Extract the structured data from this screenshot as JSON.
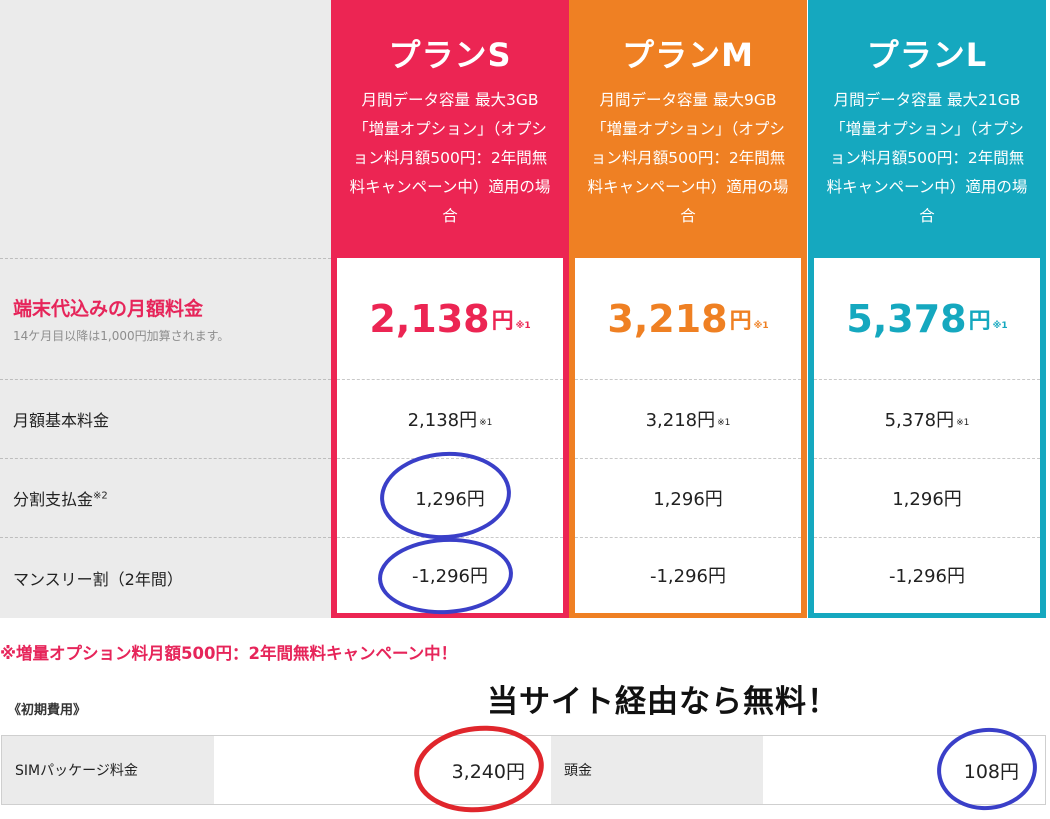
{
  "rows": {
    "featured": {
      "title": "端末代込みの月額料金",
      "sub": "14ケ月目以降は1,000円加算されます。"
    },
    "basic": "月額基本料金",
    "installment": {
      "label": "分割支払金",
      "note": "※2"
    },
    "monthly_discount": "マンスリー割（2年間）"
  },
  "plans": [
    {
      "name": "プランS",
      "color": "#ec2553",
      "desc_lines": [
        "月間データ容量 最大3GB",
        "「増量オプション」（オプシ",
        "ョン料月額500円：2年間無",
        "料キャンペーン中）適用の場",
        "合"
      ],
      "price": "2,138",
      "yen": "円",
      "note": "※1",
      "basic": "2,138円",
      "basic_note": "※1",
      "installment": "1,296円",
      "discount": "-1,296円"
    },
    {
      "name": "プランM",
      "color": "#ef8023",
      "desc_lines": [
        "月間データ容量 最大9GB",
        "「増量オプション」（オプシ",
        "ョン料月額500円：2年間無",
        "料キャンペーン中）適用の場",
        "合"
      ],
      "price": "3,218",
      "yen": "円",
      "note": "※1",
      "basic": "3,218円",
      "basic_note": "※1",
      "installment": "1,296円",
      "discount": "-1,296円"
    },
    {
      "name": "プランL",
      "color": "#15a8bf",
      "desc_lines": [
        "月間データ容量 最大21GB",
        "「増量オプション」（オプシ",
        "ョン料月額500円：2年間無",
        "料キャンペーン中）適用の場",
        "合"
      ],
      "price": "5,378",
      "yen": "円",
      "note": "※1",
      "basic": "5,378円",
      "basic_note": "※1",
      "installment": "1,296円",
      "discount": "-1,296円"
    }
  ],
  "campaign_note": "※増量オプション料月額500円：2年間無料キャンペーン中！",
  "initial_cost_heading": "《初期費用》",
  "promo_text": "当サイト経由なら無料！",
  "fees": {
    "sim_label": "SIMパッケージ料金",
    "sim_value": "3,240円",
    "head_label": "頭金",
    "head_value": "108円"
  },
  "colors": {
    "accent_pink": "#e6255a",
    "ring_blue": "#3a3fc8",
    "ring_red": "#e0262c"
  }
}
